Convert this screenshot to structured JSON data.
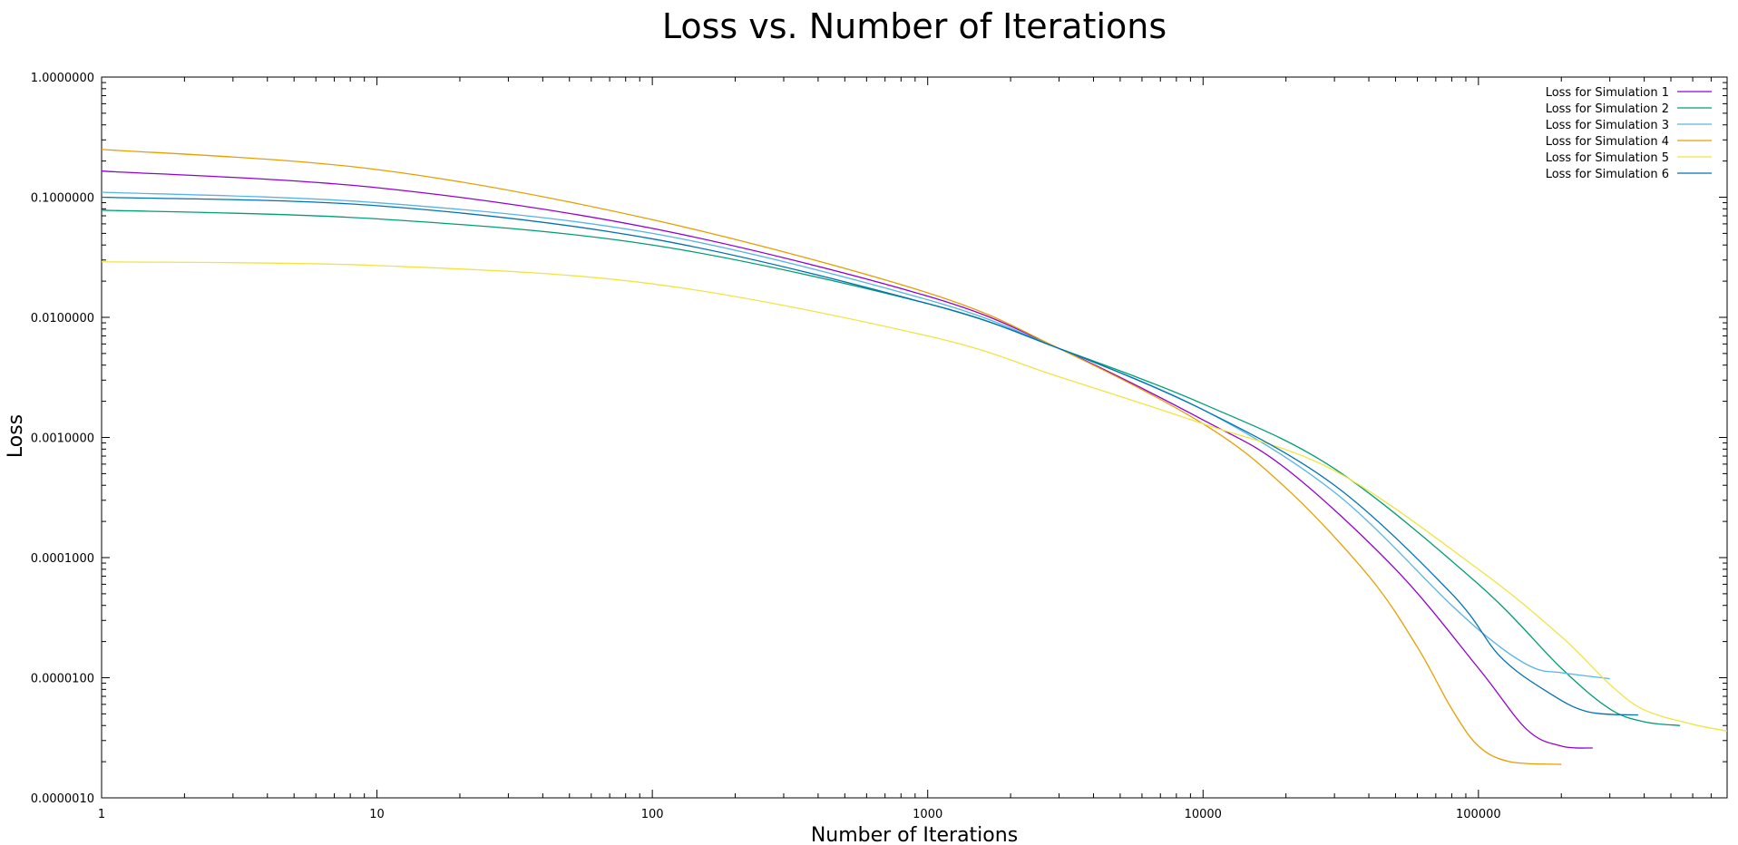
{
  "chart_data": {
    "type": "line",
    "title": "Loss vs. Number of Iterations",
    "xlabel": "Number of Iterations",
    "ylabel": "Loss",
    "xscale": "log",
    "yscale": "log",
    "xlim": [
      1,
      800000
    ],
    "ylim": [
      1e-06,
      1
    ],
    "grid": false,
    "legend_position": "top-right",
    "x_ticks": [
      1,
      10,
      100,
      1000,
      10000,
      100000
    ],
    "x_tick_labels": [
      "1",
      "10",
      "100",
      "1000",
      "10000",
      "100000"
    ],
    "y_ticks": [
      1e-06,
      1e-05,
      0.0001,
      0.001,
      0.01,
      0.1,
      1
    ],
    "y_tick_labels": [
      "0.0000010",
      "0.0000100",
      "0.0001000",
      "0.0010000",
      "0.0100000",
      "0.1000000",
      "1.0000000"
    ],
    "series": [
      {
        "name": "Loss for Simulation 1",
        "color": "#9400d3",
        "x": [
          1,
          10,
          100,
          1000,
          3000,
          10000,
          20000,
          50000,
          100000,
          150000,
          200000,
          260000
        ],
        "y": [
          0.165,
          0.12,
          0.055,
          0.015,
          0.0055,
          0.0014,
          0.00055,
          8e-05,
          1.2e-05,
          3.7e-06,
          2.7e-06,
          2.6e-06
        ]
      },
      {
        "name": "Loss for Simulation 2",
        "color": "#009e73",
        "x": [
          1,
          10,
          100,
          1000,
          3000,
          10000,
          30000,
          100000,
          200000,
          300000,
          400000,
          540000
        ],
        "y": [
          0.078,
          0.066,
          0.04,
          0.013,
          0.0055,
          0.0019,
          0.00055,
          6e-05,
          1.2e-05,
          5.5e-06,
          4.3e-06,
          4e-06
        ]
      },
      {
        "name": "Loss for Simulation 3",
        "color": "#56b4e9",
        "x": [
          1,
          10,
          100,
          1000,
          3000,
          10000,
          30000,
          80000,
          120000,
          160000,
          200000,
          300000
        ],
        "y": [
          0.11,
          0.09,
          0.05,
          0.014,
          0.0055,
          0.0017,
          0.00035,
          4e-05,
          1.8e-05,
          1.2e-05,
          1.1e-05,
          9.8e-06
        ]
      },
      {
        "name": "Loss for Simulation 4",
        "color": "#e69f00",
        "x": [
          1,
          10,
          100,
          1000,
          3000,
          10000,
          20000,
          40000,
          60000,
          80000,
          100000,
          130000,
          200000
        ],
        "y": [
          0.25,
          0.17,
          0.065,
          0.016,
          0.0055,
          0.0013,
          0.00038,
          7e-05,
          1.8e-05,
          5.5e-06,
          2.7e-06,
          2e-06,
          1.9e-06
        ]
      },
      {
        "name": "Loss for Simulation 5",
        "color": "#f0e442",
        "x": [
          1,
          10,
          100,
          1000,
          3000,
          10000,
          30000,
          100000,
          200000,
          300000,
          400000,
          600000,
          800000
        ],
        "y": [
          0.029,
          0.027,
          0.019,
          0.007,
          0.0032,
          0.0013,
          0.00053,
          8e-05,
          2.2e-05,
          8.8e-06,
          5.4e-06,
          4.1e-06,
          3.6e-06
        ]
      },
      {
        "name": "Loss for Simulation 6",
        "color": "#0072b2",
        "x": [
          1,
          10,
          100,
          1000,
          3000,
          10000,
          30000,
          80000,
          120000,
          180000,
          250000,
          380000
        ],
        "y": [
          0.1,
          0.085,
          0.045,
          0.013,
          0.0055,
          0.0017,
          0.0004,
          5e-05,
          1.5e-05,
          7.5e-06,
          5.2e-06,
          4.9e-06
        ]
      }
    ]
  }
}
